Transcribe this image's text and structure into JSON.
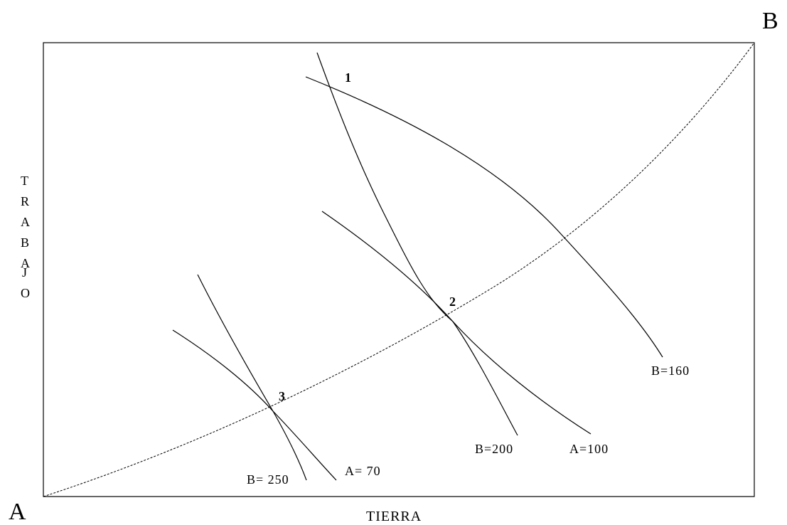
{
  "diagram": {
    "corner_a": "A",
    "corner_b": "B",
    "x_axis_label": "TIERRA",
    "y_axis_letters": [
      "T",
      "R",
      "A",
      "B",
      "A",
      "J",
      "O"
    ],
    "points": {
      "p1": "1",
      "p2": "2",
      "p3": "3"
    },
    "curve_labels": {
      "b160": "B=160",
      "b200": "B=200",
      "a100": "A=100",
      "b250": "B= 250",
      "a70": "A= 70"
    }
  }
}
